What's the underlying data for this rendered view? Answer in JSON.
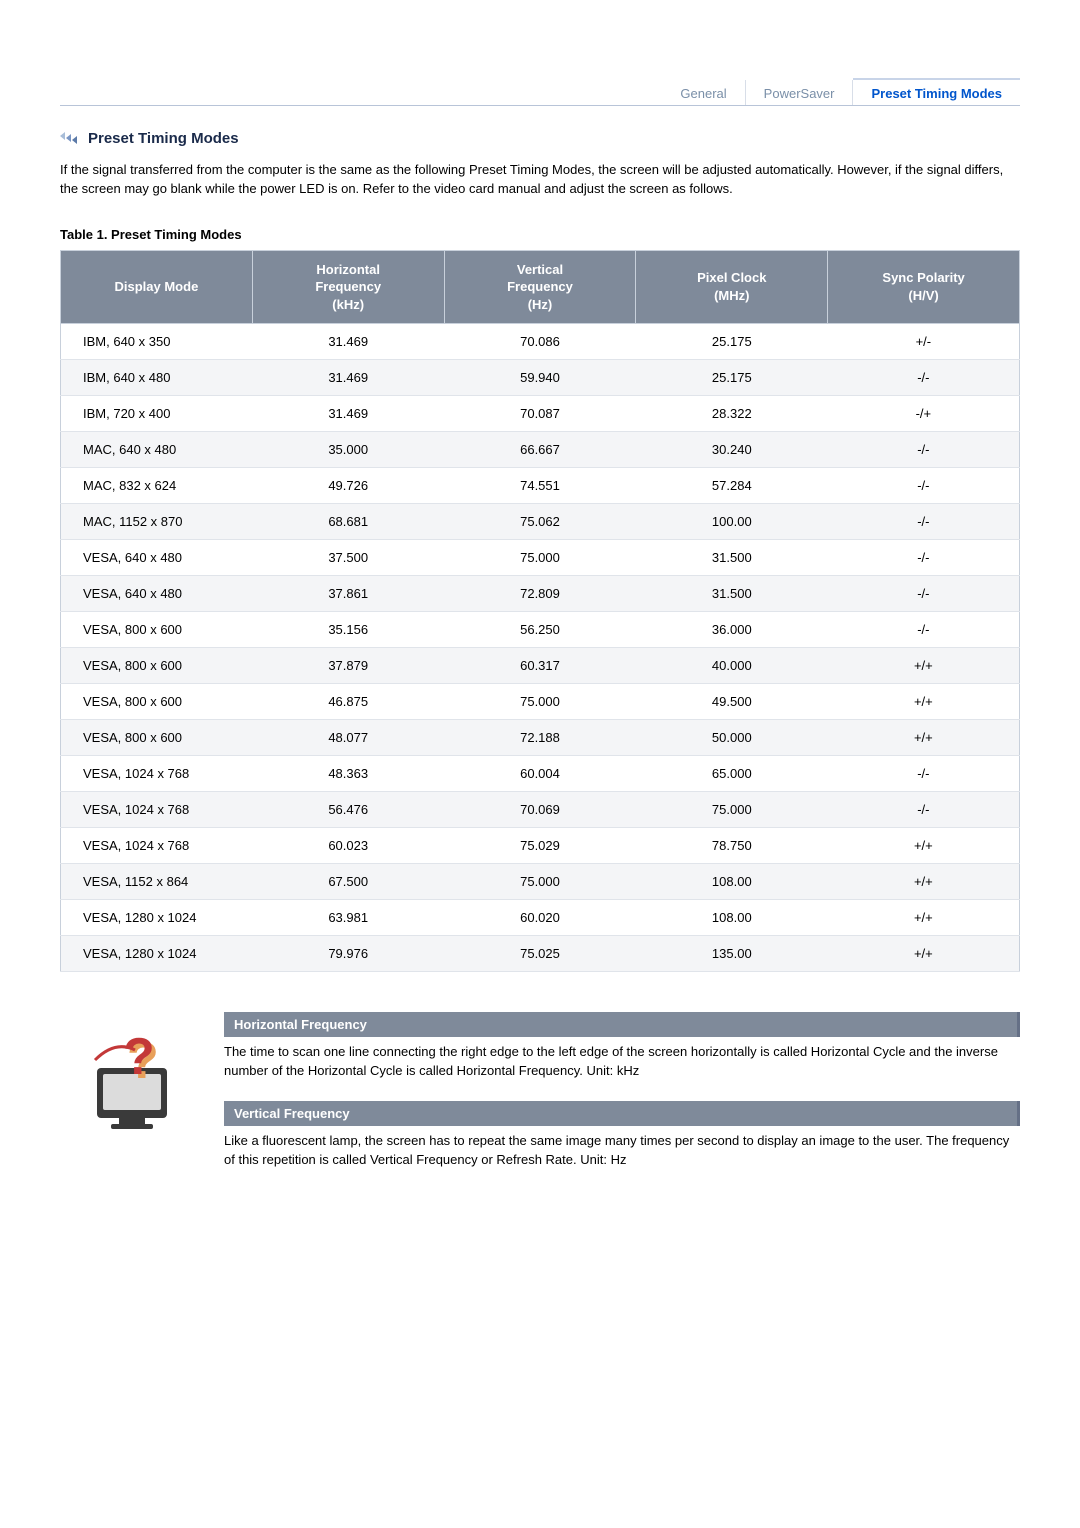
{
  "tabs": {
    "items": [
      {
        "label": "General",
        "active": false
      },
      {
        "label": "PowerSaver",
        "active": false
      },
      {
        "label": "Preset Timing Modes",
        "active": true
      }
    ],
    "active_color": "#0055cc",
    "inactive_color": "#7a8fa8"
  },
  "heading": "Preset Timing Modes",
  "intro_text": "If the signal transferred from the computer is the same as the following Preset Timing Modes, the screen will be adjusted automatically. However, if the signal differs, the screen may go blank while the power LED is on. Refer to the video card manual and adjust the screen as follows.",
  "table": {
    "caption": "Table 1. Preset Timing Modes",
    "type": "table",
    "header_bg": "#7f8a9a",
    "header_fg": "#ffffff",
    "row_alt_bg": "#f4f5f7",
    "border_color": "#c8d0db",
    "columns": [
      "Display Mode",
      "Horizontal Frequency (kHz)",
      "Vertical Frequency (Hz)",
      "Pixel Clock (MHz)",
      "Sync Polarity (H/V)"
    ],
    "column_labels": {
      "c0": "Display Mode",
      "c1_l1": "Horizontal",
      "c1_l2": "Frequency",
      "c1_l3": "(kHz)",
      "c2_l1": "Vertical",
      "c2_l2": "Frequency",
      "c2_l3": "(Hz)",
      "c3_l1": "Pixel Clock",
      "c3_l2": "(MHz)",
      "c4_l1": "Sync Polarity",
      "c4_l2": "(H/V)"
    },
    "rows": [
      [
        "IBM, 640 x 350",
        "31.469",
        "70.086",
        "25.175",
        "+/-"
      ],
      [
        "IBM, 640 x 480",
        "31.469",
        "59.940",
        "25.175",
        "-/-"
      ],
      [
        "IBM, 720 x 400",
        "31.469",
        "70.087",
        "28.322",
        "-/+"
      ],
      [
        "MAC, 640 x 480",
        "35.000",
        "66.667",
        "30.240",
        "-/-"
      ],
      [
        "MAC, 832 x 624",
        "49.726",
        "74.551",
        "57.284",
        "-/-"
      ],
      [
        "MAC, 1152 x 870",
        "68.681",
        "75.062",
        "100.00",
        "-/-"
      ],
      [
        "VESA, 640 x 480",
        "37.500",
        "75.000",
        "31.500",
        "-/-"
      ],
      [
        "VESA, 640 x 480",
        "37.861",
        "72.809",
        "31.500",
        "-/-"
      ],
      [
        "VESA, 800 x 600",
        "35.156",
        "56.250",
        "36.000",
        "-/-"
      ],
      [
        "VESA, 800 x 600",
        "37.879",
        "60.317",
        "40.000",
        "+/+"
      ],
      [
        "VESA, 800 x 600",
        "46.875",
        "75.000",
        "49.500",
        "+/+"
      ],
      [
        "VESA, 800 x 600",
        "48.077",
        "72.188",
        "50.000",
        "+/+"
      ],
      [
        "VESA, 1024 x 768",
        "48.363",
        "60.004",
        "65.000",
        "-/-"
      ],
      [
        "VESA, 1024 x 768",
        "56.476",
        "70.069",
        "75.000",
        "-/-"
      ],
      [
        "VESA, 1024 x 768",
        "60.023",
        "75.029",
        "78.750",
        "+/+"
      ],
      [
        "VESA, 1152 x 864",
        "67.500",
        "75.000",
        "108.00",
        "+/+"
      ],
      [
        "VESA, 1280 x 1024",
        "63.981",
        "60.020",
        "108.00",
        "+/+"
      ],
      [
        "VESA, 1280 x 1024",
        "79.976",
        "75.025",
        "135.00",
        "+/+"
      ]
    ]
  },
  "definitions": {
    "bar_bg": "#7f8a9a",
    "bar_fg": "#ffffff",
    "hf_title": "Horizontal Frequency",
    "hf_text": "The time to scan one line connecting the right edge to the left edge of the screen horizontally is called Horizontal Cycle and the inverse number of the Horizontal Cycle is called Horizontal Frequency. Unit: kHz",
    "vf_title": "Vertical Frequency",
    "vf_text": "Like a fluorescent lamp, the screen has to repeat the same image many times per second to display an image to the user. The frequency of this repetition is called Vertical Frequency or Refresh Rate. Unit: Hz"
  },
  "icon_colors": {
    "arrow": "#5b7aa8",
    "monitor_body": "#3a3a3a",
    "monitor_screen": "#d8d8d8",
    "question": "#c33838",
    "question_shadow": "#e8a05a"
  }
}
